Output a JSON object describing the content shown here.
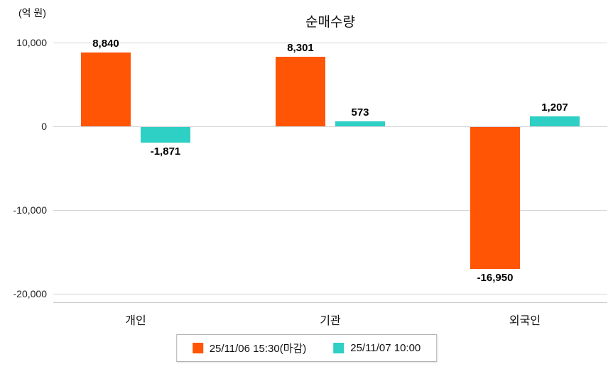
{
  "chart": {
    "title": "순매수량",
    "unit_label": "(억 원)"
  },
  "chart_data": {
    "type": "bar",
    "title": "순매수량",
    "ylabel": "(억 원)",
    "categories": [
      "개인",
      "기관",
      "외국인"
    ],
    "series": [
      {
        "name": "25/11/06 15:30(마감)",
        "color": "#ff5504",
        "values": [
          8840,
          8301,
          -16950
        ],
        "labels": [
          "8,840",
          "8,301",
          "-16,950"
        ]
      },
      {
        "name": "25/11/07 10:00",
        "color": "#2ecfc4",
        "values": [
          -1871,
          573,
          1207
        ],
        "labels": [
          "-1,871",
          "573",
          "1,207"
        ]
      }
    ],
    "yticks": [
      10000,
      0,
      -10000,
      -20000
    ],
    "ytick_labels": [
      "10,000",
      "0",
      "-10,000",
      "-20,000"
    ],
    "ylim": [
      -21000,
      11000
    ],
    "grid": true,
    "legend_position": "bottom"
  }
}
